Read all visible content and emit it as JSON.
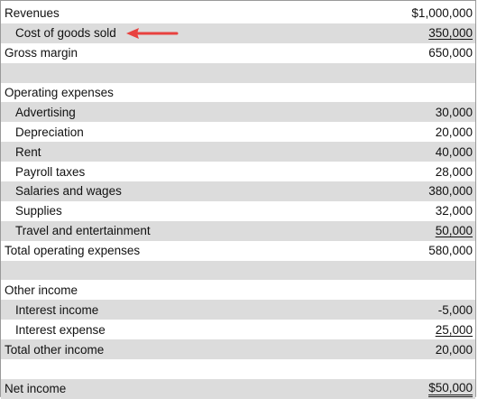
{
  "statement": {
    "rows": [
      {
        "label": "Revenues",
        "value": "$1,000,000"
      },
      {
        "label": "Cost of goods sold",
        "value": "350,000"
      },
      {
        "label": "Gross margin",
        "value": "650,000"
      },
      {
        "label": "",
        "value": ""
      },
      {
        "label": "Operating expenses",
        "value": ""
      },
      {
        "label": "Advertising",
        "value": "30,000"
      },
      {
        "label": "Depreciation",
        "value": "20,000"
      },
      {
        "label": "Rent",
        "value": "40,000"
      },
      {
        "label": "Payroll taxes",
        "value": "28,000"
      },
      {
        "label": "Salaries and wages",
        "value": "380,000"
      },
      {
        "label": "Supplies",
        "value": "32,000"
      },
      {
        "label": "Travel and entertainment",
        "value": "50,000"
      },
      {
        "label": "Total operating expenses",
        "value": "580,000"
      },
      {
        "label": "",
        "value": ""
      },
      {
        "label": "Other income",
        "value": ""
      },
      {
        "label": "Interest income",
        "value": "-5,000"
      },
      {
        "label": "Interest expense",
        "value": "25,000"
      },
      {
        "label": "Total other income",
        "value": "20,000"
      },
      {
        "label": "",
        "value": ""
      },
      {
        "label": "Net income",
        "value": "$50,000"
      }
    ]
  },
  "colors": {
    "row_shading": "#dcdcdc",
    "arrow": "#e8423f"
  }
}
